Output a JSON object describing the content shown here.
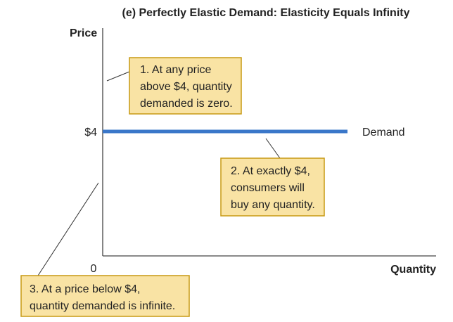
{
  "chart_data": {
    "type": "line",
    "title": "(e) Perfectly Elastic Demand: Elasticity Equals Infinity",
    "xlabel": "Quantity",
    "ylabel": "Price",
    "x_tick_labels": [
      "0"
    ],
    "y_tick_labels": [
      "$4"
    ],
    "series": [
      {
        "name": "Demand",
        "color": "#3a77c9",
        "x": [
          0,
          1
        ],
        "y": [
          4,
          4
        ]
      }
    ],
    "annotations": [
      {
        "id": "above",
        "lines": [
          "1. At any price",
          "above $4, quantity",
          "demanded is zero."
        ]
      },
      {
        "id": "exact",
        "lines": [
          "2. At exactly $4,",
          "consumers will",
          "buy any quantity."
        ]
      },
      {
        "id": "below",
        "lines": [
          "3. At a price below $4,",
          "quantity demanded is infinite."
        ]
      }
    ],
    "colors": {
      "callout_fill": "#f9e3a4",
      "callout_border": "#c79a14",
      "axis": "#444444",
      "leader": "#333333"
    }
  }
}
